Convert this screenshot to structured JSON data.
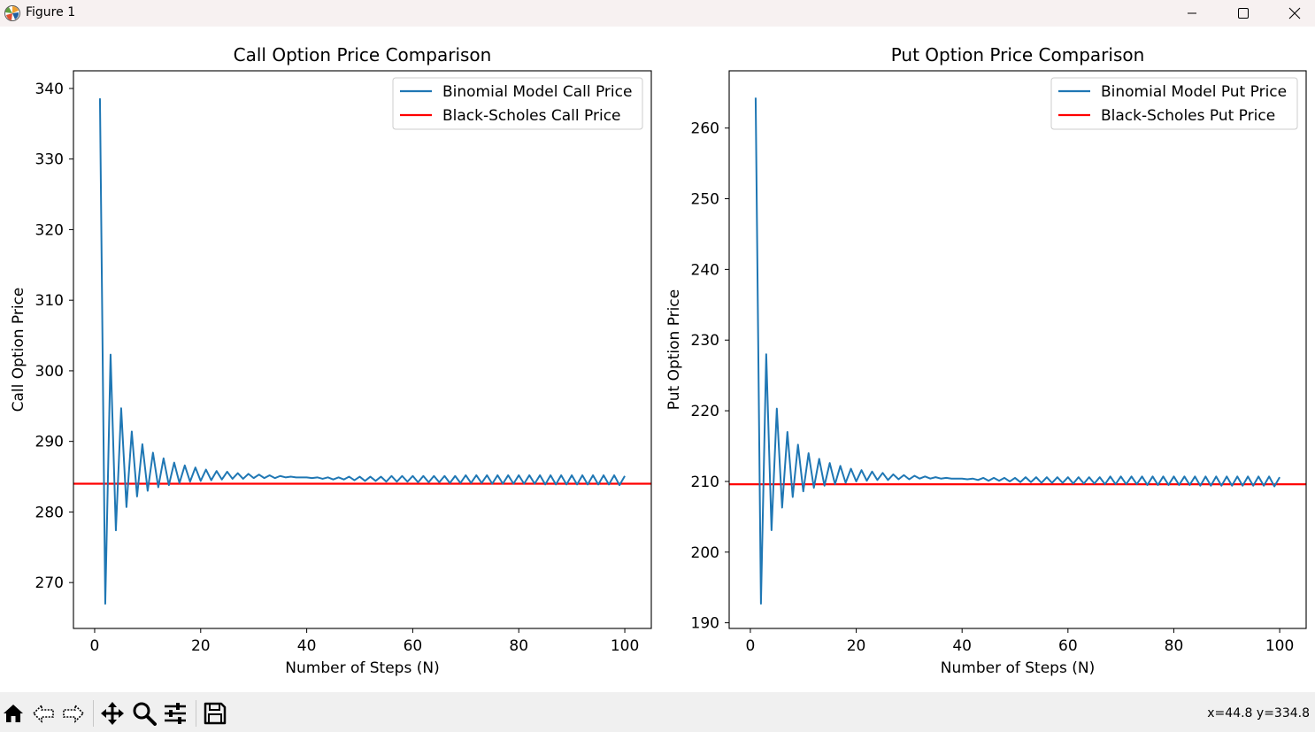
{
  "window": {
    "title": "Figure 1",
    "controls": [
      "minimize",
      "maximize",
      "close"
    ]
  },
  "toolbar": {
    "buttons": [
      "home-icon",
      "back-icon",
      "forward-icon",
      "pan-icon",
      "zoom-icon",
      "configure-subplots-icon",
      "save-icon"
    ],
    "coords": "x=44.8 y=334.8"
  },
  "colors": {
    "binomial": "#1f77b4",
    "black_scholes": "#ff0000"
  },
  "chart_data": [
    {
      "type": "line",
      "title": "Call Option Price Comparison",
      "xlabel": "Number of Steps (N)",
      "ylabel": "Call Option Price",
      "xlim": [
        -4,
        105
      ],
      "ylim": [
        263.5,
        342.5
      ],
      "xticks": [
        0,
        20,
        40,
        60,
        80,
        100
      ],
      "yticks": [
        270,
        280,
        290,
        300,
        310,
        320,
        330,
        340
      ],
      "legend_position": "upper right",
      "grid": false,
      "series": [
        {
          "name": "Binomial Model Call Price",
          "x_start": 1,
          "values": [
            338.6,
            267.0,
            302.3,
            277.4,
            294.7,
            280.7,
            291.4,
            282.2,
            289.6,
            283.0,
            288.4,
            283.5,
            287.6,
            283.8,
            287.0,
            284.1,
            286.6,
            284.3,
            286.3,
            284.4,
            286.0,
            284.5,
            285.8,
            284.6,
            285.7,
            284.7,
            285.5,
            284.7,
            285.4,
            284.8,
            285.3,
            284.8,
            285.2,
            284.8,
            285.1,
            284.9,
            285.0,
            284.9,
            284.9,
            284.9,
            284.8,
            284.9,
            284.7,
            284.9,
            284.6,
            284.9,
            284.6,
            285.0,
            284.5,
            285.0,
            284.4,
            285.0,
            284.4,
            285.0,
            284.3,
            285.1,
            284.3,
            285.1,
            284.3,
            285.1,
            284.2,
            285.1,
            284.2,
            285.1,
            284.2,
            285.1,
            284.1,
            285.1,
            284.1,
            285.2,
            284.1,
            285.2,
            284.1,
            285.2,
            284.0,
            285.2,
            284.0,
            285.2,
            284.0,
            285.2,
            284.0,
            285.2,
            284.0,
            285.2,
            283.9,
            285.2,
            283.9,
            285.2,
            283.9,
            285.2,
            283.9,
            285.2,
            283.9,
            285.2,
            283.9,
            285.2,
            283.9,
            285.2,
            283.8,
            285.1
          ]
        },
        {
          "name": "Black-Scholes Call Price",
          "hline": 284.0
        }
      ]
    },
    {
      "type": "line",
      "title": "Put Option Price Comparison",
      "xlabel": "Number of Steps (N)",
      "ylabel": "Put Option Price",
      "xlim": [
        -4,
        105
      ],
      "ylim": [
        189.2,
        268.1
      ],
      "xticks": [
        0,
        20,
        40,
        60,
        80,
        100
      ],
      "yticks": [
        190,
        200,
        210,
        220,
        230,
        240,
        250,
        260
      ],
      "legend_position": "upper right",
      "grid": false,
      "series": [
        {
          "name": "Binomial Model Put Price",
          "x_start": 1,
          "values": [
            264.3,
            192.7,
            228.0,
            203.1,
            220.3,
            206.3,
            217.0,
            207.8,
            215.2,
            208.6,
            214.0,
            209.1,
            213.2,
            209.4,
            212.6,
            209.6,
            212.2,
            209.8,
            211.8,
            210.0,
            211.6,
            210.1,
            211.4,
            210.2,
            211.2,
            210.2,
            211.0,
            210.3,
            210.9,
            210.3,
            210.8,
            210.4,
            210.7,
            210.4,
            210.6,
            210.4,
            210.5,
            210.4,
            210.4,
            210.4,
            210.3,
            210.4,
            210.2,
            210.5,
            210.1,
            210.5,
            210.1,
            210.5,
            210.0,
            210.5,
            209.9,
            210.6,
            209.9,
            210.6,
            209.8,
            210.6,
            209.8,
            210.6,
            209.8,
            210.6,
            209.7,
            210.6,
            209.7,
            210.6,
            209.7,
            210.6,
            209.6,
            210.7,
            209.6,
            210.7,
            209.6,
            210.7,
            209.6,
            210.7,
            209.5,
            210.7,
            209.5,
            210.7,
            209.5,
            210.7,
            209.5,
            210.7,
            209.5,
            210.7,
            209.4,
            210.7,
            209.4,
            210.7,
            209.4,
            210.7,
            209.4,
            210.7,
            209.4,
            210.7,
            209.4,
            210.7,
            209.4,
            210.7,
            209.3,
            210.6
          ]
        },
        {
          "name": "Black-Scholes Put Price",
          "hline": 209.6
        }
      ]
    }
  ]
}
